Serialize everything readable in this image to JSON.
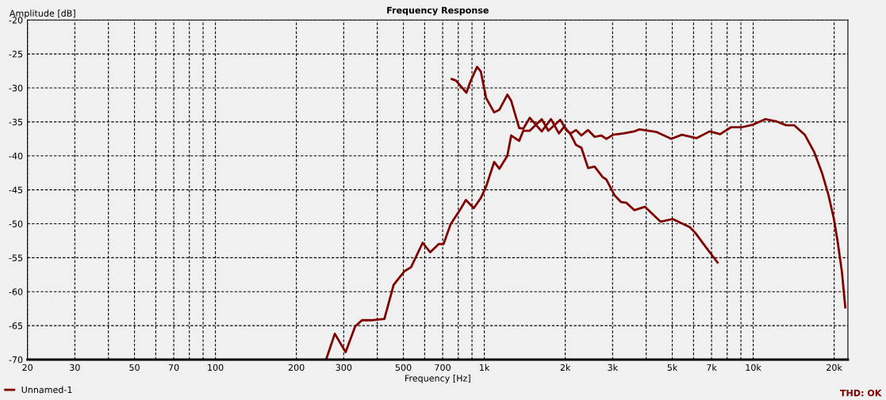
{
  "chart_data": {
    "type": "line",
    "title": "Frequency Response",
    "xlabel": "Frequency [Hz]",
    "ylabel": "Amplitude [dB]",
    "log": "x",
    "grid": true,
    "legend": "bottom left",
    "line_style": "solid",
    "marker": "none",
    "xlim": [
      20,
      22500
    ],
    "ylim": [
      -70,
      -20
    ],
    "xticks": [
      20,
      30,
      {
        "value": 40,
        "label": null
      },
      50,
      {
        "value": 60,
        "label": null
      },
      70,
      {
        "value": 80,
        "label": null
      },
      {
        "value": 90,
        "label": null
      },
      100,
      200,
      300,
      {
        "value": 400,
        "label": null
      },
      500,
      {
        "value": 600,
        "label": null
      },
      700,
      {
        "value": 800,
        "label": null
      },
      {
        "value": 900,
        "label": null
      },
      {
        "value": 1000,
        "label": "1k"
      },
      {
        "value": 2000,
        "label": "2k"
      },
      {
        "value": 3000,
        "label": "3k"
      },
      {
        "value": 4000,
        "label": null
      },
      {
        "value": 5000,
        "label": "5k"
      },
      {
        "value": 6000,
        "label": null
      },
      {
        "value": 7000,
        "label": "7k"
      },
      {
        "value": 8000,
        "label": null
      },
      {
        "value": 9000,
        "label": null
      },
      {
        "value": 10000,
        "label": "10k"
      },
      {
        "value": 20000,
        "label": "20k"
      }
    ],
    "yticks": [
      -70,
      -65,
      -60,
      -55,
      -50,
      -45,
      -40,
      -35,
      -30,
      -25,
      -20
    ],
    "series": [
      {
        "name": "Unnamed-1",
        "color": "#800000",
        "x": [
          258,
          278,
          305,
          331,
          351,
          379,
          425,
          460,
          504,
          534,
          590,
          629,
          676,
          705,
          749,
          811,
          854,
          914,
          971,
          1016,
          1088,
          1138,
          1218,
          1259,
          1348,
          1396,
          1476,
          1635,
          1730,
          1916,
          2028,
          2098,
          2194,
          2296,
          2432,
          2572,
          2722,
          2846,
          3014,
          3298,
          3612,
          3778,
          4376,
          4958,
          5430,
          6148,
          6888,
          7536,
          8260,
          9036,
          10000,
          11080,
          12130,
          13270,
          14220,
          15560,
          16840,
          18020,
          19060,
          19960,
          20640,
          21380,
          22000
        ],
        "values": [
          -70,
          -66.2,
          -68.9,
          -65.1,
          -64.2,
          -64.2,
          -64.0,
          -59.0,
          -57.0,
          -56.4,
          -52.8,
          -54.2,
          -53.0,
          -53.0,
          -50.1,
          -48.0,
          -46.5,
          -47.7,
          -46.2,
          -44.5,
          -40.9,
          -41.9,
          -40.0,
          -37.0,
          -37.8,
          -36.3,
          -36.3,
          -34.6,
          -36.3,
          -34.7,
          -36.3,
          -36.7,
          -36.2,
          -37.0,
          -36.2,
          -37.2,
          -37.0,
          -37.5,
          -36.9,
          -36.7,
          -36.4,
          -36.1,
          -36.5,
          -37.5,
          -36.9,
          -37.4,
          -36.4,
          -36.8,
          -35.8,
          -35.8,
          -35.4,
          -34.6,
          -34.9,
          -35.5,
          -35.5,
          -36.9,
          -39.4,
          -42.5,
          -45.8,
          -49.3,
          -52.8,
          -57.1,
          -62.3
        ]
      },
      {
        "color": "#800000",
        "x": [
          757,
          784,
          858,
          887,
          940,
          971,
          1016,
          1088,
          1138,
          1218,
          1259,
          1348,
          1396,
          1476,
          1635,
          1770,
          1894,
          1982,
          2098,
          2194,
          2296,
          2432,
          2572,
          2752,
          2846,
          3048,
          3224,
          3374,
          3612,
          3954,
          4528,
          5014,
          5810,
          6080,
          6654,
          7368
        ],
        "values": [
          -28.7,
          -28.9,
          -30.7,
          -29.1,
          -26.9,
          -27.6,
          -31.5,
          -33.6,
          -33.2,
          -31.0,
          -31.9,
          -35.9,
          -36.0,
          -34.4,
          -36.4,
          -34.6,
          -36.7,
          -35.7,
          -36.9,
          -38.4,
          -38.8,
          -41.8,
          -41.6,
          -43.1,
          -43.5,
          -45.8,
          -46.8,
          -46.9,
          -48.0,
          -47.5,
          -49.7,
          -49.3,
          -50.5,
          -51.3,
          -53.4,
          -55.7
        ]
      }
    ],
    "annotations": [
      "THD: OK"
    ]
  }
}
